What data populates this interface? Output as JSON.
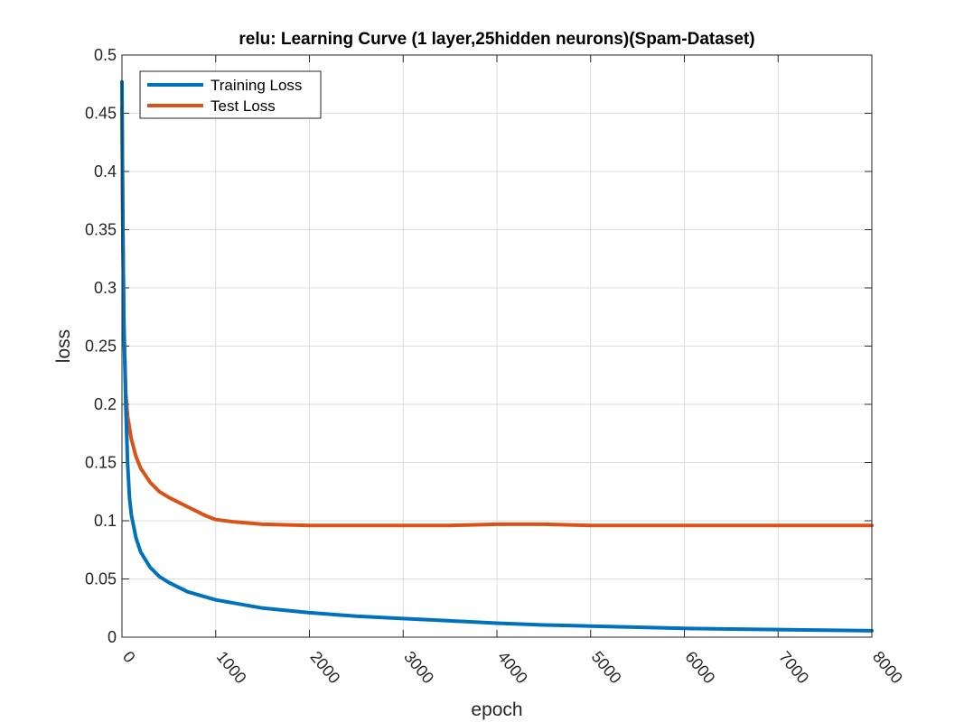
{
  "chart_data": {
    "type": "line",
    "title": "relu: Learning Curve (1 layer,25hidden neurons)(Spam-Dataset)",
    "xlabel": "epoch",
    "ylabel": "loss",
    "xlim": [
      0,
      8000
    ],
    "ylim": [
      0,
      0.5
    ],
    "xticks": [
      0,
      1000,
      2000,
      3000,
      4000,
      5000,
      6000,
      7000,
      8000
    ],
    "xtick_labels": [
      "0",
      "1000",
      "2000",
      "3000",
      "4000",
      "5000",
      "6000",
      "7000",
      "8000"
    ],
    "yticks": [
      0,
      0.05,
      0.1,
      0.15,
      0.2,
      0.25,
      0.3,
      0.35,
      0.4,
      0.45,
      0.5
    ],
    "ytick_labels": [
      "0",
      "0.05",
      "0.1",
      "0.15",
      "0.2",
      "0.25",
      "0.3",
      "0.35",
      "0.4",
      "0.45",
      "0.5"
    ],
    "grid": true,
    "legend_position": "top-left",
    "series": [
      {
        "name": "Training Loss",
        "color": "#0072BD",
        "x": [
          0,
          10,
          20,
          40,
          60,
          80,
          100,
          150,
          200,
          300,
          400,
          500,
          700,
          1000,
          1500,
          2000,
          2500,
          3000,
          3500,
          4000,
          4500,
          5000,
          5500,
          6000,
          6500,
          7000,
          7500,
          8000
        ],
        "y": [
          0.477,
          0.35,
          0.27,
          0.2,
          0.15,
          0.12,
          0.105,
          0.085,
          0.073,
          0.06,
          0.052,
          0.047,
          0.039,
          0.032,
          0.025,
          0.021,
          0.018,
          0.016,
          0.014,
          0.012,
          0.0105,
          0.0095,
          0.0085,
          0.0075,
          0.007,
          0.0065,
          0.006,
          0.0055
        ]
      },
      {
        "name": "Test Loss",
        "color": "#D95319",
        "x": [
          0,
          10,
          20,
          40,
          60,
          80,
          100,
          150,
          200,
          300,
          400,
          500,
          600,
          700,
          800,
          900,
          1000,
          1200,
          1500,
          2000,
          2500,
          3000,
          3500,
          4000,
          4500,
          5000,
          5500,
          6000,
          6500,
          7000,
          7500,
          8000
        ],
        "y": [
          0.455,
          0.35,
          0.27,
          0.21,
          0.19,
          0.18,
          0.17,
          0.155,
          0.145,
          0.133,
          0.125,
          0.12,
          0.116,
          0.112,
          0.108,
          0.104,
          0.101,
          0.099,
          0.097,
          0.096,
          0.096,
          0.096,
          0.096,
          0.097,
          0.097,
          0.096,
          0.096,
          0.096,
          0.096,
          0.096,
          0.096,
          0.096
        ]
      }
    ]
  }
}
